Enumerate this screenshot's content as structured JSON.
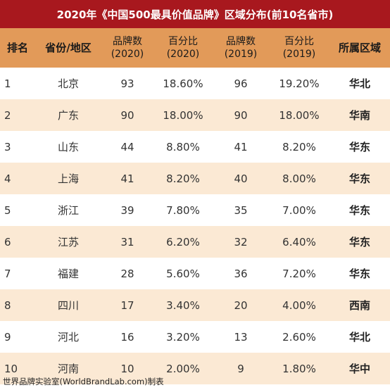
{
  "title": "2020年《中国500最具价值品牌》区域分布(前10名省市)",
  "colors": {
    "title_bg": "#a8181e",
    "header_bg": "#e29a59",
    "alt_row": "#fbe9d4"
  },
  "chart_data": {
    "type": "table",
    "columns": [
      {
        "line1": "排名",
        "line2": ""
      },
      {
        "line1": "省份/地区",
        "line2": ""
      },
      {
        "line1": "品牌数",
        "line2": "(2020)"
      },
      {
        "line1": "百分比",
        "line2": "(2020)"
      },
      {
        "line1": "品牌数",
        "line2": "(2019)"
      },
      {
        "line1": "百分比",
        "line2": "(2019)"
      },
      {
        "line1": "所属区域",
        "line2": ""
      }
    ],
    "rows": [
      [
        "1",
        "北京",
        "93",
        "18.60%",
        "96",
        "19.20%",
        "华北"
      ],
      [
        "2",
        "广东",
        "90",
        "18.00%",
        "90",
        "18.00%",
        "华南"
      ],
      [
        "3",
        "山东",
        "44",
        "8.80%",
        "41",
        "8.20%",
        "华东"
      ],
      [
        "4",
        "上海",
        "41",
        "8.20%",
        "40",
        "8.00%",
        "华东"
      ],
      [
        "5",
        "浙江",
        "39",
        "7.80%",
        "35",
        "7.00%",
        "华东"
      ],
      [
        "6",
        "江苏",
        "31",
        "6.20%",
        "32",
        "6.40%",
        "华东"
      ],
      [
        "7",
        "福建",
        "28",
        "5.60%",
        "36",
        "7.20%",
        "华东"
      ],
      [
        "8",
        "四川",
        "17",
        "3.40%",
        "20",
        "4.00%",
        "西南"
      ],
      [
        "9",
        "河北",
        "16",
        "3.20%",
        "13",
        "2.60%",
        "华北"
      ],
      [
        "10",
        "河南",
        "10",
        "2.00%",
        "9",
        "1.80%",
        "华中"
      ]
    ]
  },
  "footer": "世界品牌实验室(WorldBrandLab.com)制表"
}
